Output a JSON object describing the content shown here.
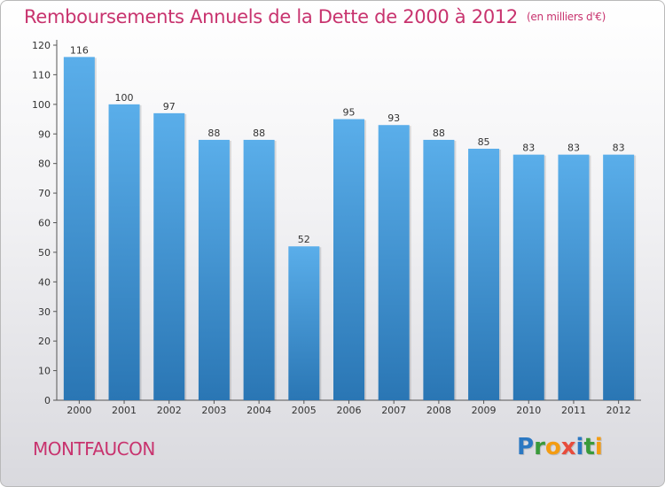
{
  "header": {
    "title": "Remboursements Annuels de la Dette de 2000 à 2012",
    "unit": "(en milliers d'€)"
  },
  "footer": {
    "commune": "MONTFAUCON",
    "logo_letters": [
      {
        "ch": "P",
        "color": "#2b78c2"
      },
      {
        "ch": "r",
        "color": "#3a9a3a"
      },
      {
        "ch": "o",
        "color": "#f39c12"
      },
      {
        "ch": "x",
        "color": "#e74c3c"
      },
      {
        "ch": "i",
        "color": "#2b78c2"
      },
      {
        "ch": "t",
        "color": "#3a9a3a"
      },
      {
        "ch": "i",
        "color": "#f39c12"
      }
    ]
  },
  "colors": {
    "bar_top": "#5aaeea",
    "bar_bottom": "#2a76b4",
    "title": "#c8336e"
  },
  "chart_data": {
    "type": "bar",
    "title": "Remboursements Annuels de la Dette de 2000 à 2012",
    "subtitle": "(en milliers d'€)",
    "categories": [
      "2000",
      "2001",
      "2002",
      "2003",
      "2004",
      "2005",
      "2006",
      "2007",
      "2008",
      "2009",
      "2010",
      "2011",
      "2012"
    ],
    "values": [
      116,
      100,
      97,
      88,
      88,
      52,
      95,
      93,
      88,
      85,
      83,
      83,
      83
    ],
    "ylim": [
      0,
      120
    ],
    "yticks": [
      0,
      10,
      20,
      30,
      40,
      50,
      60,
      70,
      80,
      90,
      100,
      110,
      120
    ],
    "grid": false,
    "legend": "none"
  }
}
